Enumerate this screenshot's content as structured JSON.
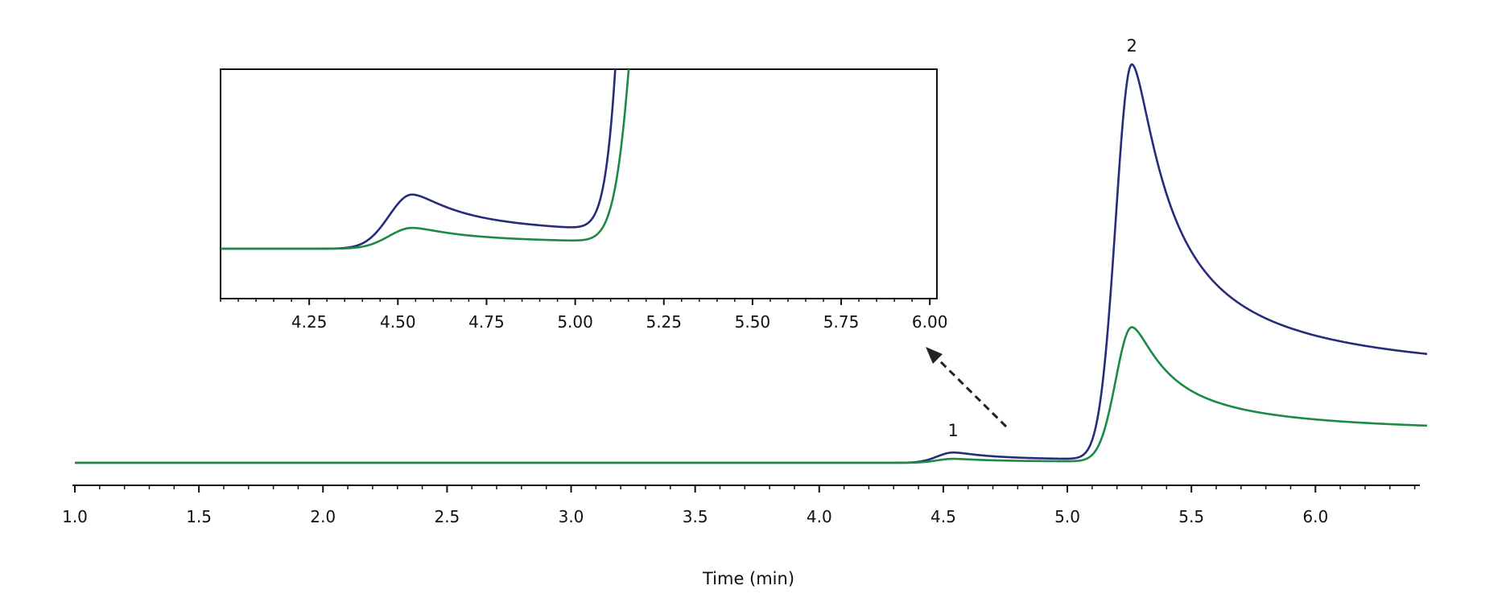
{
  "chart_data": [
    {
      "type": "line",
      "role": "main",
      "xlabel": "Time (min)",
      "ylabel": "",
      "xlim": [
        1.0,
        6.45
      ],
      "ylim": [
        0,
        100
      ],
      "x_ticks": [
        "1.0",
        "1.5",
        "2.0",
        "2.5",
        "3.0",
        "3.5",
        "4.0",
        "4.5",
        "5.0",
        "5.5",
        "6.0"
      ],
      "grid": false,
      "peak_labels": [
        {
          "text": "1",
          "x": 4.54,
          "y": 2.6
        },
        {
          "text": "2",
          "x": 5.26,
          "y": 100
        }
      ],
      "series": [
        {
          "color": "#262b7a",
          "peaks": [
            {
              "center": 4.54,
              "height": 2.6
            },
            {
              "center": 5.26,
              "height": 100
            }
          ]
        },
        {
          "color": "#1a8a45",
          "peaks": [
            {
              "center": 4.54,
              "height": 1.0
            },
            {
              "center": 5.26,
              "height": 34
            }
          ]
        }
      ]
    },
    {
      "type": "line",
      "role": "inset",
      "xlim": [
        4.0,
        6.02
      ],
      "ylim": [
        0,
        7.5
      ],
      "x_ticks": [
        "4.25",
        "4.50",
        "4.75",
        "5.00",
        "5.25",
        "5.50",
        "5.75",
        "6.00"
      ],
      "grid": false,
      "series": [
        {
          "color": "#262b7a",
          "peaks": [
            {
              "center": 4.54,
              "height": 2.6
            },
            {
              "center": 5.26,
              "height": 100
            }
          ]
        },
        {
          "color": "#1a8a45",
          "peaks": [
            {
              "center": 4.54,
              "height": 1.0
            },
            {
              "center": 5.26,
              "height": 34
            }
          ]
        }
      ]
    }
  ],
  "colors": {
    "axis": "#111111",
    "arrow": "#222222"
  },
  "annotation_arrow": {
    "style": "dashed",
    "points_to": "inset"
  }
}
